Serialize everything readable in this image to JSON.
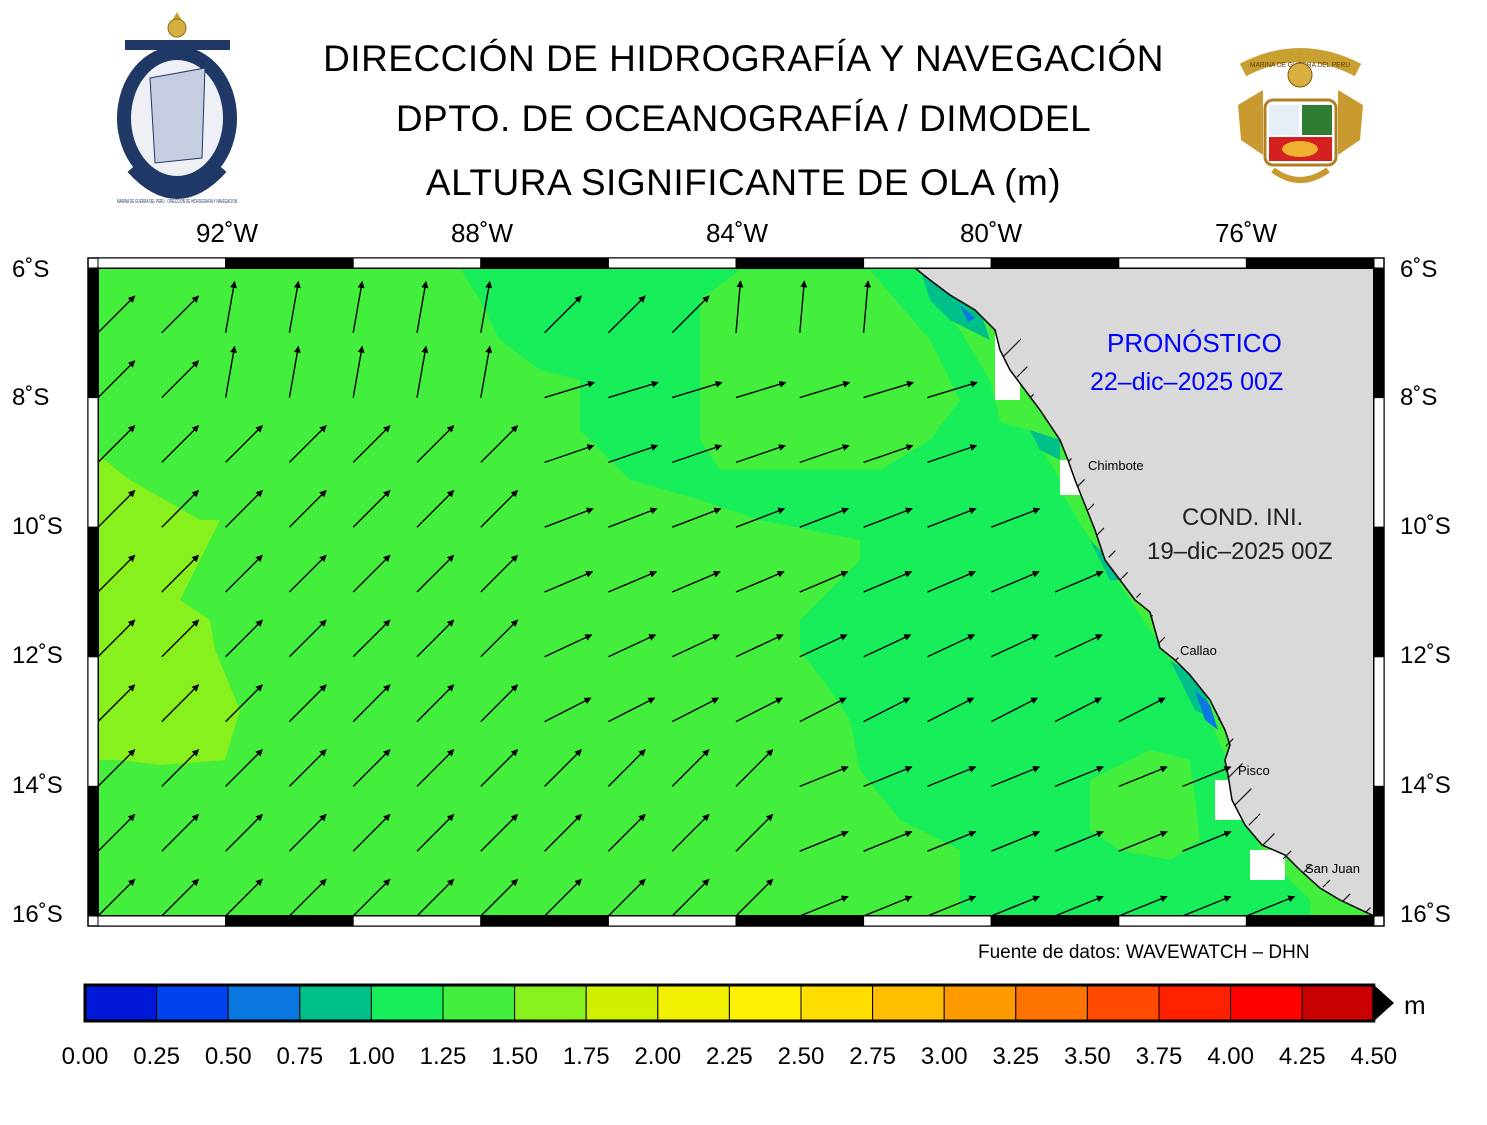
{
  "header": {
    "title_line1": "DIRECCIÓN DE HIDROGRAFÍA Y NAVEGACIÓN",
    "title_line2": "DPTO. DE OCEANOGRAFÍA / DIMODEL",
    "title_line3": "ALTURA SIGNIFICANTE DE OLA (m)",
    "left_logo_text": "MARINA DE GUERRA DEL PERU · DIRECCION DE HIDROGRAFIA Y NAVEGACION",
    "right_logo_text": "MARINA DE GUERRA DEL PERU"
  },
  "map": {
    "lon_labels": [
      "92˚W",
      "88˚W",
      "84˚W",
      "80˚W",
      "76˚W"
    ],
    "lat_labels": [
      "6˚S",
      "8˚S",
      "10˚S",
      "12˚S",
      "14˚S",
      "16˚S"
    ],
    "forecast_label": "PRONÓSTICO",
    "forecast_date": "22–dic–2025 00Z",
    "init_label": "COND. INI.",
    "init_date": "19–dic–2025 00Z",
    "cities": [
      "Chimbote",
      "Callao",
      "Pisco",
      "San Juan"
    ],
    "land_color": "#d9d9d9",
    "source": "Fuente de datos: WAVEWATCH – DHN"
  },
  "colorbar": {
    "ticks": [
      "0.00",
      "0.25",
      "0.50",
      "0.75",
      "1.00",
      "1.25",
      "1.50",
      "1.75",
      "2.00",
      "2.25",
      "2.50",
      "2.75",
      "3.00",
      "3.25",
      "3.50",
      "3.75",
      "4.00",
      "4.25",
      "4.50"
    ],
    "colors": [
      "#0018d8",
      "#0042f0",
      "#0a78e0",
      "#00c08a",
      "#18ee5a",
      "#44ee3c",
      "#88f01c",
      "#d0f000",
      "#f0f000",
      "#fff000",
      "#ffde00",
      "#ffbf00",
      "#ff9900",
      "#ff7300",
      "#ff4a00",
      "#ff2000",
      "#ff0000",
      "#c80000"
    ],
    "unit": "m"
  },
  "chart_data": {
    "type": "heatmap",
    "title": "ALTURA SIGNIFICANTE DE OLA (m)",
    "x_range": [
      -94,
      -74
    ],
    "y_range": [
      -16,
      -6
    ],
    "x_ticks": [
      -92,
      -88,
      -84,
      -80,
      -76
    ],
    "y_ticks": [
      -6,
      -8,
      -10,
      -12,
      -14,
      -16
    ],
    "color_scale_range": [
      0,
      4.5
    ],
    "dominant_wave_height_m": [
      1.0,
      1.75
    ],
    "arrow_direction": "toward northeast",
    "cities": [
      {
        "name": "Chimbote",
        "lon": -78.6,
        "lat": -9.1
      },
      {
        "name": "Callao",
        "lon": -77.2,
        "lat": -12.05
      },
      {
        "name": "Pisco",
        "lon": -76.2,
        "lat": -13.7
      },
      {
        "name": "San Juan",
        "lon": -75.2,
        "lat": -15.35
      }
    ]
  }
}
